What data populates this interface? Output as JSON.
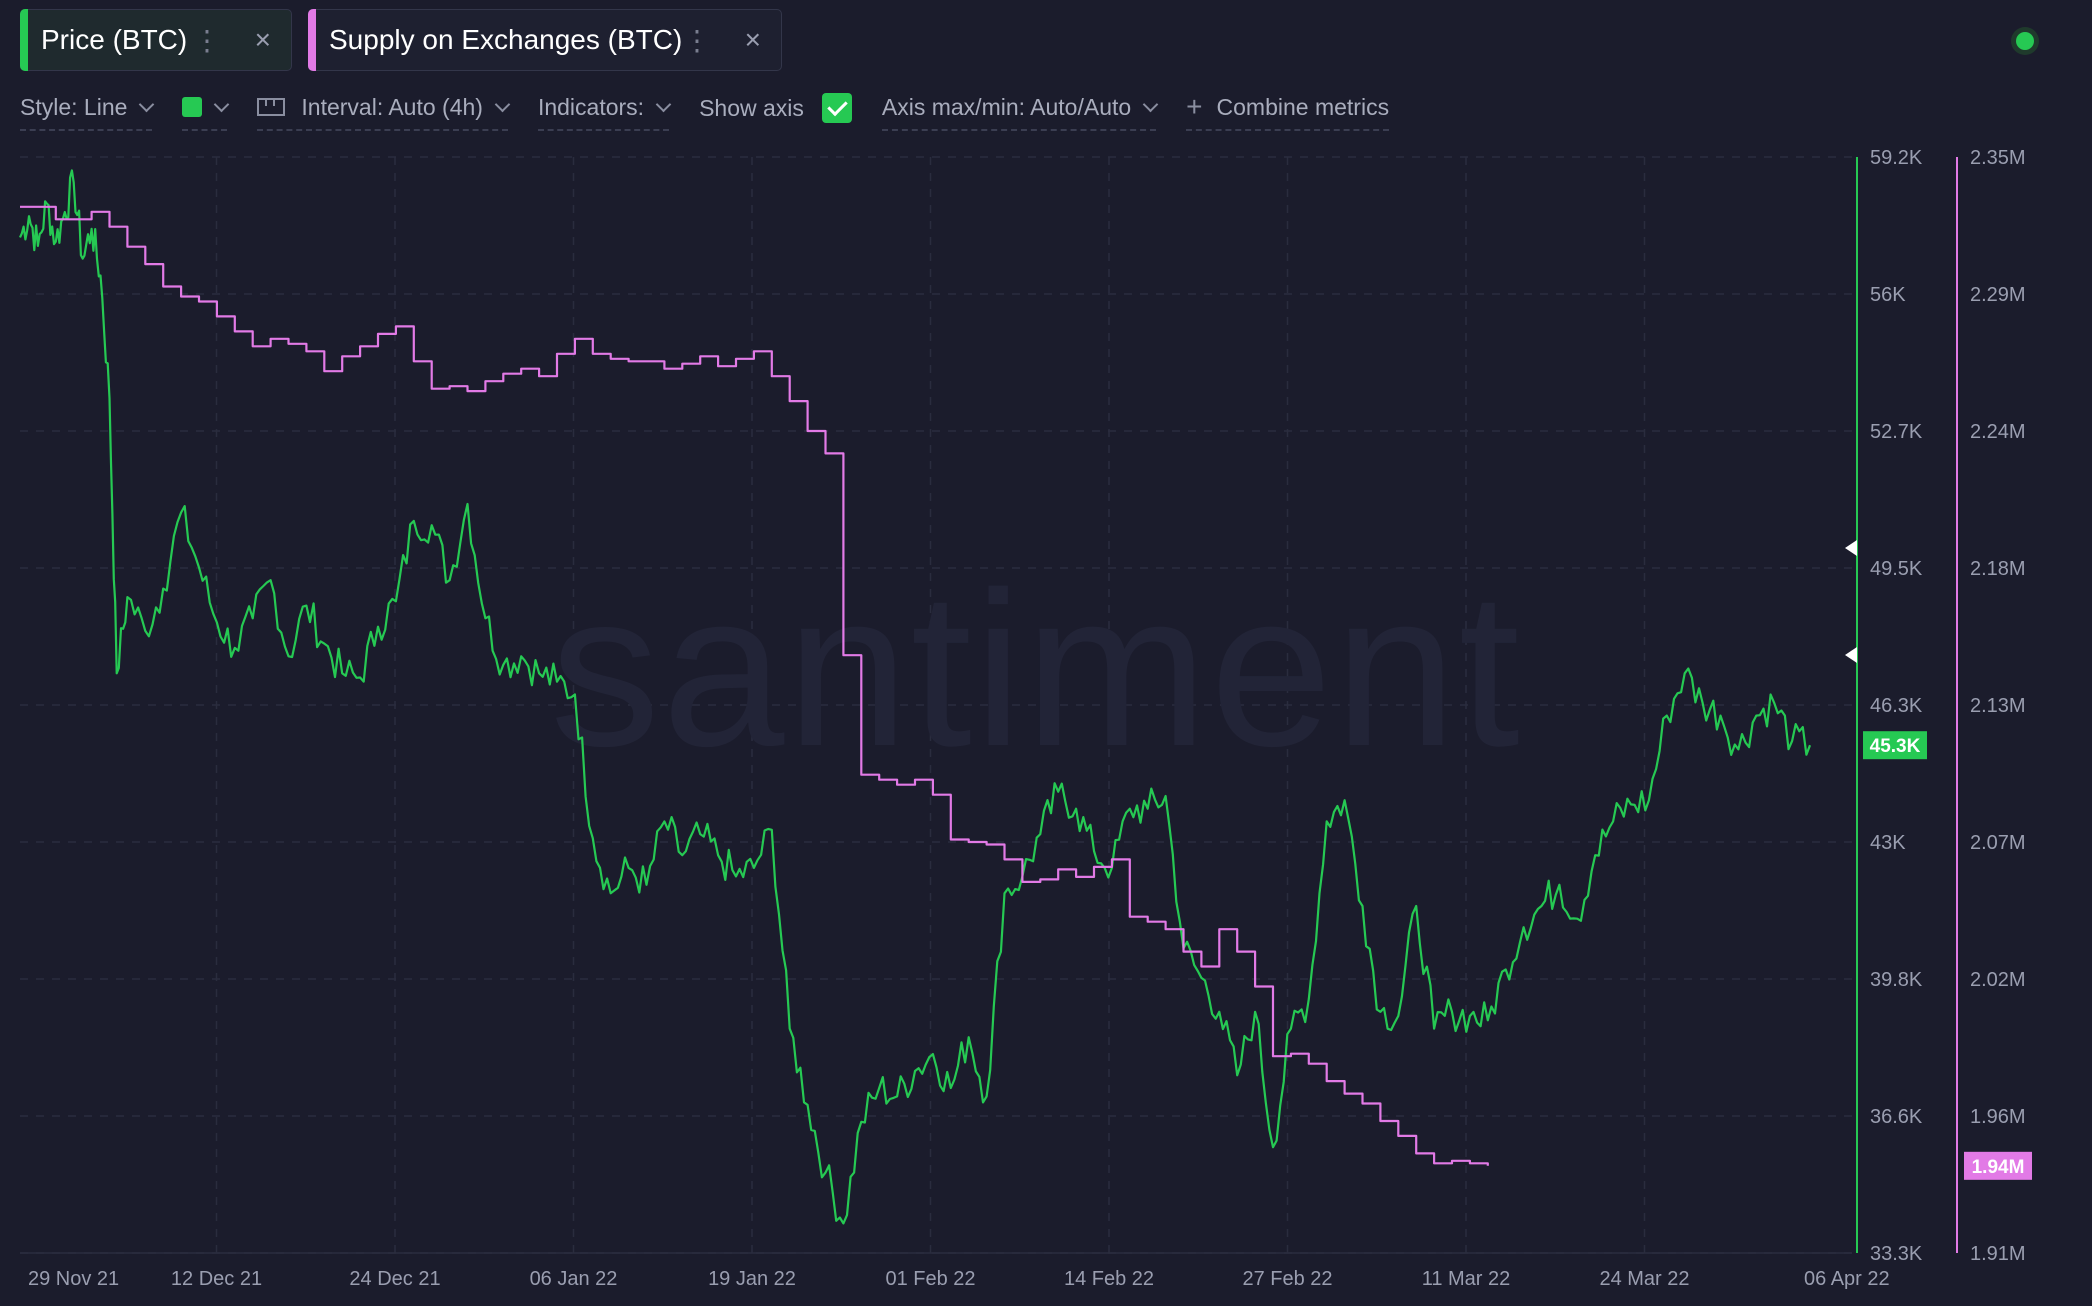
{
  "tabs": [
    {
      "label": "Price (BTC)",
      "color": "#26c953",
      "dots": "⋮",
      "close": "×"
    },
    {
      "label": "Supply on Exchanges (BTC)",
      "color": "#e27ae6",
      "dots": "⋮",
      "close": "×"
    }
  ],
  "toolbar": {
    "style": "Style: Line",
    "line_color": "#26c953",
    "interval": "Interval: Auto (4h)",
    "indicators": "Indicators:",
    "show_axis": "Show axis",
    "show_axis_checked": true,
    "axis_maxmin": "Axis max/min: Auto/Auto",
    "combine": "Combine metrics"
  },
  "watermark": "santiment",
  "chart_data": {
    "type": "line",
    "x_labels": [
      "29 Nov 21",
      "12 Dec 21",
      "24 Dec 21",
      "06 Jan 22",
      "19 Jan 22",
      "01 Feb 22",
      "14 Feb 22",
      "27 Feb 22",
      "11 Mar 22",
      "24 Mar 22",
      "06 Apr 22"
    ],
    "y_left": {
      "ticks": [
        "59.2K",
        "56K",
        "52.7K",
        "49.5K",
        "46.3K",
        "43K",
        "39.8K",
        "36.6K",
        "33.3K"
      ],
      "range": [
        33300,
        59200
      ],
      "current_label": "45.3K",
      "color": "#26c953"
    },
    "y_right": {
      "ticks": [
        "2.35M",
        "2.29M",
        "2.24M",
        "2.18M",
        "2.13M",
        "2.07M",
        "2.02M",
        "1.96M",
        "1.91M"
      ],
      "range": [
        1910000,
        2350000
      ],
      "current_label": "1.94M",
      "color": "#e27ae6"
    },
    "series": [
      {
        "name": "Price (BTC)",
        "axis": "left",
        "color": "#26c953",
        "points": [
          [
            0,
            57300
          ],
          [
            0.5,
            57800
          ],
          [
            1,
            57100
          ],
          [
            1.5,
            58100
          ],
          [
            2,
            57200
          ],
          [
            2.5,
            57900
          ],
          [
            3,
            58600
          ],
          [
            3.5,
            56800
          ],
          [
            4,
            57500
          ],
          [
            4.5,
            56400
          ],
          [
            5,
            53500
          ],
          [
            5.4,
            47000
          ],
          [
            6,
            48800
          ],
          [
            7,
            48000
          ],
          [
            8,
            49000
          ],
          [
            9,
            50800
          ],
          [
            10,
            49500
          ],
          [
            11,
            48200
          ],
          [
            12,
            47600
          ],
          [
            13,
            48300
          ],
          [
            14,
            49200
          ],
          [
            15,
            47400
          ],
          [
            16,
            48600
          ],
          [
            17,
            47700
          ],
          [
            18,
            47000
          ],
          [
            19,
            46900
          ],
          [
            20,
            48100
          ],
          [
            21,
            48700
          ],
          [
            22,
            50600
          ],
          [
            23,
            50500
          ],
          [
            24,
            49200
          ],
          [
            25,
            51000
          ],
          [
            26,
            48300
          ],
          [
            27,
            47200
          ],
          [
            28,
            47400
          ],
          [
            29,
            47000
          ],
          [
            30,
            46800
          ],
          [
            31,
            46500
          ],
          [
            32,
            43100
          ],
          [
            33,
            41800
          ],
          [
            34,
            42400
          ],
          [
            35,
            42000
          ],
          [
            36,
            43500
          ],
          [
            37,
            42700
          ],
          [
            38,
            43200
          ],
          [
            39,
            42700
          ],
          [
            40,
            42200
          ],
          [
            41,
            42400
          ],
          [
            42,
            43300
          ],
          [
            43,
            38600
          ],
          [
            44,
            36800
          ],
          [
            45,
            35200
          ],
          [
            46,
            34000
          ],
          [
            47,
            36400
          ],
          [
            48,
            37200
          ],
          [
            49,
            37000
          ],
          [
            50,
            37600
          ],
          [
            51,
            38000
          ],
          [
            52,
            37200
          ],
          [
            53,
            38400
          ],
          [
            54,
            37000
          ],
          [
            55,
            41800
          ],
          [
            56,
            42200
          ],
          [
            57,
            43200
          ],
          [
            58,
            44200
          ],
          [
            59,
            43800
          ],
          [
            60,
            42800
          ],
          [
            61,
            42400
          ],
          [
            62,
            43800
          ],
          [
            63,
            43800
          ],
          [
            64,
            44100
          ],
          [
            65,
            40500
          ],
          [
            66,
            39800
          ],
          [
            67,
            39000
          ],
          [
            68,
            37500
          ],
          [
            69,
            39000
          ],
          [
            70,
            35800
          ],
          [
            71,
            38600
          ],
          [
            72,
            39300
          ],
          [
            73,
            43500
          ],
          [
            74,
            44000
          ],
          [
            75,
            41500
          ],
          [
            76,
            39000
          ],
          [
            77,
            38900
          ],
          [
            78,
            41500
          ],
          [
            79,
            38600
          ],
          [
            80,
            39000
          ],
          [
            81,
            38900
          ],
          [
            82,
            38800
          ],
          [
            83,
            40000
          ],
          [
            84,
            41000
          ],
          [
            85,
            41500
          ],
          [
            86,
            42000
          ],
          [
            87,
            41200
          ],
          [
            88,
            42700
          ],
          [
            89,
            43500
          ],
          [
            90,
            43900
          ],
          [
            91,
            44000
          ],
          [
            92,
            46000
          ],
          [
            93,
            47000
          ],
          [
            94,
            46300
          ],
          [
            95,
            46000
          ],
          [
            96,
            45200
          ],
          [
            97,
            46000
          ],
          [
            98,
            46300
          ],
          [
            99,
            45400
          ],
          [
            100,
            45300
          ]
        ]
      },
      {
        "name": "Supply on Exchanges (BTC)",
        "axis": "right",
        "color": "#e27ae6",
        "points": [
          [
            0,
            2330000
          ],
          [
            2,
            2325000
          ],
          [
            4,
            2328000
          ],
          [
            5,
            2322000
          ],
          [
            6,
            2314000
          ],
          [
            7,
            2307000
          ],
          [
            8,
            2298000
          ],
          [
            9,
            2294000
          ],
          [
            10,
            2292000
          ],
          [
            11,
            2286000
          ],
          [
            12,
            2280000
          ],
          [
            13,
            2274000
          ],
          [
            14,
            2277000
          ],
          [
            15,
            2275000
          ],
          [
            16,
            2272000
          ],
          [
            17,
            2264000
          ],
          [
            18,
            2270000
          ],
          [
            19,
            2274000
          ],
          [
            20,
            2279000
          ],
          [
            21,
            2282000
          ],
          [
            22,
            2268000
          ],
          [
            23,
            2257000
          ],
          [
            24,
            2258000
          ],
          [
            25,
            2256000
          ],
          [
            26,
            2260000
          ],
          [
            27,
            2263000
          ],
          [
            28,
            2265000
          ],
          [
            29,
            2262000
          ],
          [
            30,
            2271000
          ],
          [
            31,
            2277000
          ],
          [
            32,
            2271000
          ],
          [
            33,
            2269000
          ],
          [
            34,
            2268000
          ],
          [
            35,
            2268000
          ],
          [
            36,
            2265000
          ],
          [
            37,
            2267000
          ],
          [
            38,
            2270000
          ],
          [
            39,
            2266000
          ],
          [
            40,
            2269000
          ],
          [
            41,
            2272000
          ],
          [
            42,
            2262000
          ],
          [
            43,
            2252000
          ],
          [
            44,
            2240000
          ],
          [
            45,
            2231000
          ],
          [
            46,
            2150000
          ],
          [
            47,
            2102000
          ],
          [
            48,
            2100000
          ],
          [
            49,
            2098000
          ],
          [
            50,
            2100000
          ],
          [
            51,
            2094000
          ],
          [
            52,
            2076000
          ],
          [
            53,
            2075000
          ],
          [
            54,
            2074000
          ],
          [
            55,
            2068000
          ],
          [
            56,
            2059000
          ],
          [
            57,
            2060000
          ],
          [
            58,
            2064000
          ],
          [
            59,
            2061000
          ],
          [
            60,
            2065000
          ],
          [
            61,
            2068000
          ],
          [
            62,
            2045000
          ],
          [
            63,
            2043000
          ],
          [
            64,
            2040000
          ],
          [
            65,
            2031000
          ],
          [
            66,
            2025000
          ],
          [
            67,
            2040000
          ],
          [
            68,
            2031000
          ],
          [
            69,
            2017000
          ],
          [
            70,
            1989000
          ],
          [
            71,
            1990000
          ],
          [
            72,
            1986000
          ],
          [
            73,
            1979000
          ],
          [
            74,
            1974000
          ],
          [
            75,
            1970000
          ],
          [
            76,
            1963000
          ],
          [
            77,
            1957000
          ],
          [
            78,
            1950000
          ],
          [
            79,
            1946000
          ],
          [
            80,
            1947000
          ],
          [
            81,
            1946000
          ],
          [
            82,
            1945000
          ]
        ]
      }
    ]
  }
}
